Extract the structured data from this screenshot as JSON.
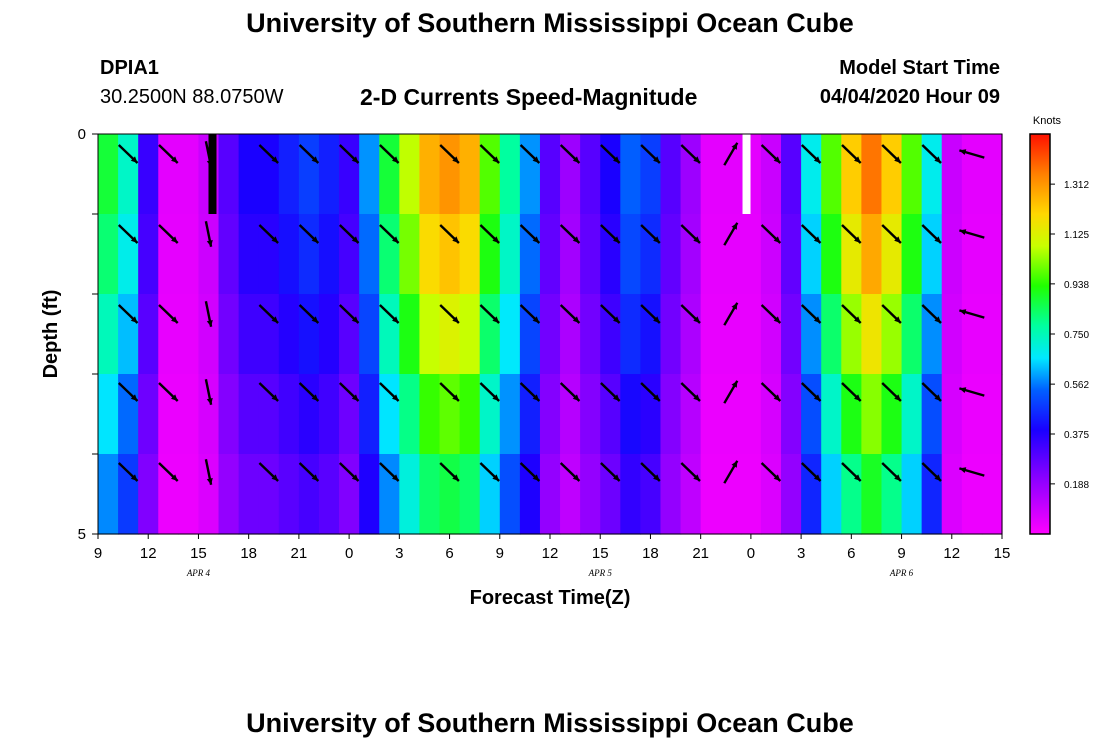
{
  "header": {
    "title": "University of Southern Mississippi Ocean Cube",
    "station_id": "DPIA1",
    "station_location": "30.2500N 88.0750W",
    "plot_title": "2-D Currents Speed-Magnitude",
    "model_start_label": "Model Start Time",
    "model_start_value": "04/04/2020 Hour 09"
  },
  "footer": {
    "title": "University of Southern Mississippi Ocean Cube"
  },
  "chart_data": {
    "type": "heatmap",
    "xlabel": "Forecast Time(Z)",
    "ylabel": "Depth (ft)",
    "x_tick_labels": [
      "9",
      "12",
      "15",
      "18",
      "21",
      "0",
      "3",
      "6",
      "9",
      "12",
      "15",
      "18",
      "21",
      "0",
      "3",
      "6",
      "9",
      "12",
      "15"
    ],
    "date_labels": [
      {
        "label": "APR 4",
        "at_tick": 2
      },
      {
        "label": "APR 5",
        "at_tick": 10
      },
      {
        "label": "APR 6",
        "at_tick": 16
      }
    ],
    "y_tick_labels": [
      "0",
      "",
      "",
      "",
      "",
      "5"
    ],
    "ylim": [
      0,
      5
    ],
    "colorbar": {
      "unit": "Knots",
      "ticks": [
        "1.312",
        "1.125",
        "0.938",
        "0.750",
        "0.562",
        "0.375",
        "0.188"
      ],
      "tick_values": [
        1.312,
        1.125,
        0.938,
        0.75,
        0.562,
        0.375,
        0.188
      ],
      "min": 0.0,
      "max": 1.5
    },
    "speed_profile": [
      [
        0,
        0.9
      ],
      [
        1,
        0.75
      ],
      [
        2,
        0.35
      ],
      [
        3,
        0.05
      ],
      [
        4,
        0.05
      ],
      [
        5,
        0.1
      ],
      [
        6,
        0.3
      ],
      [
        7,
        0.4
      ],
      [
        8,
        0.4
      ],
      [
        9,
        0.45
      ],
      [
        10,
        0.5
      ],
      [
        11,
        0.45
      ],
      [
        12,
        0.35
      ],
      [
        13,
        0.6
      ],
      [
        14,
        0.9
      ],
      [
        15,
        1.1
      ],
      [
        16,
        1.3
      ],
      [
        17,
        1.35
      ],
      [
        18,
        1.3
      ],
      [
        19,
        1.0
      ],
      [
        20,
        0.8
      ],
      [
        21,
        0.6
      ],
      [
        22,
        0.3
      ],
      [
        23,
        0.18
      ],
      [
        24,
        0.3
      ],
      [
        25,
        0.4
      ],
      [
        26,
        0.55
      ],
      [
        27,
        0.5
      ],
      [
        28,
        0.3
      ],
      [
        29,
        0.18
      ],
      [
        30,
        0.05
      ],
      [
        31,
        0.05
      ],
      [
        32,
        0.05
      ],
      [
        33,
        0.1
      ],
      [
        34,
        0.3
      ],
      [
        35,
        0.7
      ],
      [
        36,
        1.0
      ],
      [
        37,
        1.25
      ],
      [
        38,
        1.4
      ],
      [
        39,
        1.25
      ],
      [
        40,
        1.0
      ],
      [
        41,
        0.7
      ],
      [
        42,
        0.1
      ],
      [
        43,
        0.05
      ],
      [
        44,
        0.05
      ]
    ],
    "depth_factor": [
      1.0,
      0.95,
      0.88,
      0.78,
      0.68,
      0.6
    ],
    "vector_times": [
      1,
      3,
      5,
      8,
      10,
      12,
      14,
      17,
      19,
      21,
      23,
      25,
      27,
      29,
      31,
      33,
      35,
      37,
      39,
      41,
      43
    ],
    "vector_directions_deg": [
      315,
      315,
      350,
      315,
      315,
      315,
      315,
      315,
      315,
      315,
      315,
      315,
      315,
      315,
      210,
      315,
      315,
      315,
      315,
      315,
      100
    ],
    "missing_cells": [
      {
        "t": 6.6,
        "depth_bin": 0
      },
      {
        "t": 38.5,
        "depth_bin": 0
      }
    ]
  }
}
